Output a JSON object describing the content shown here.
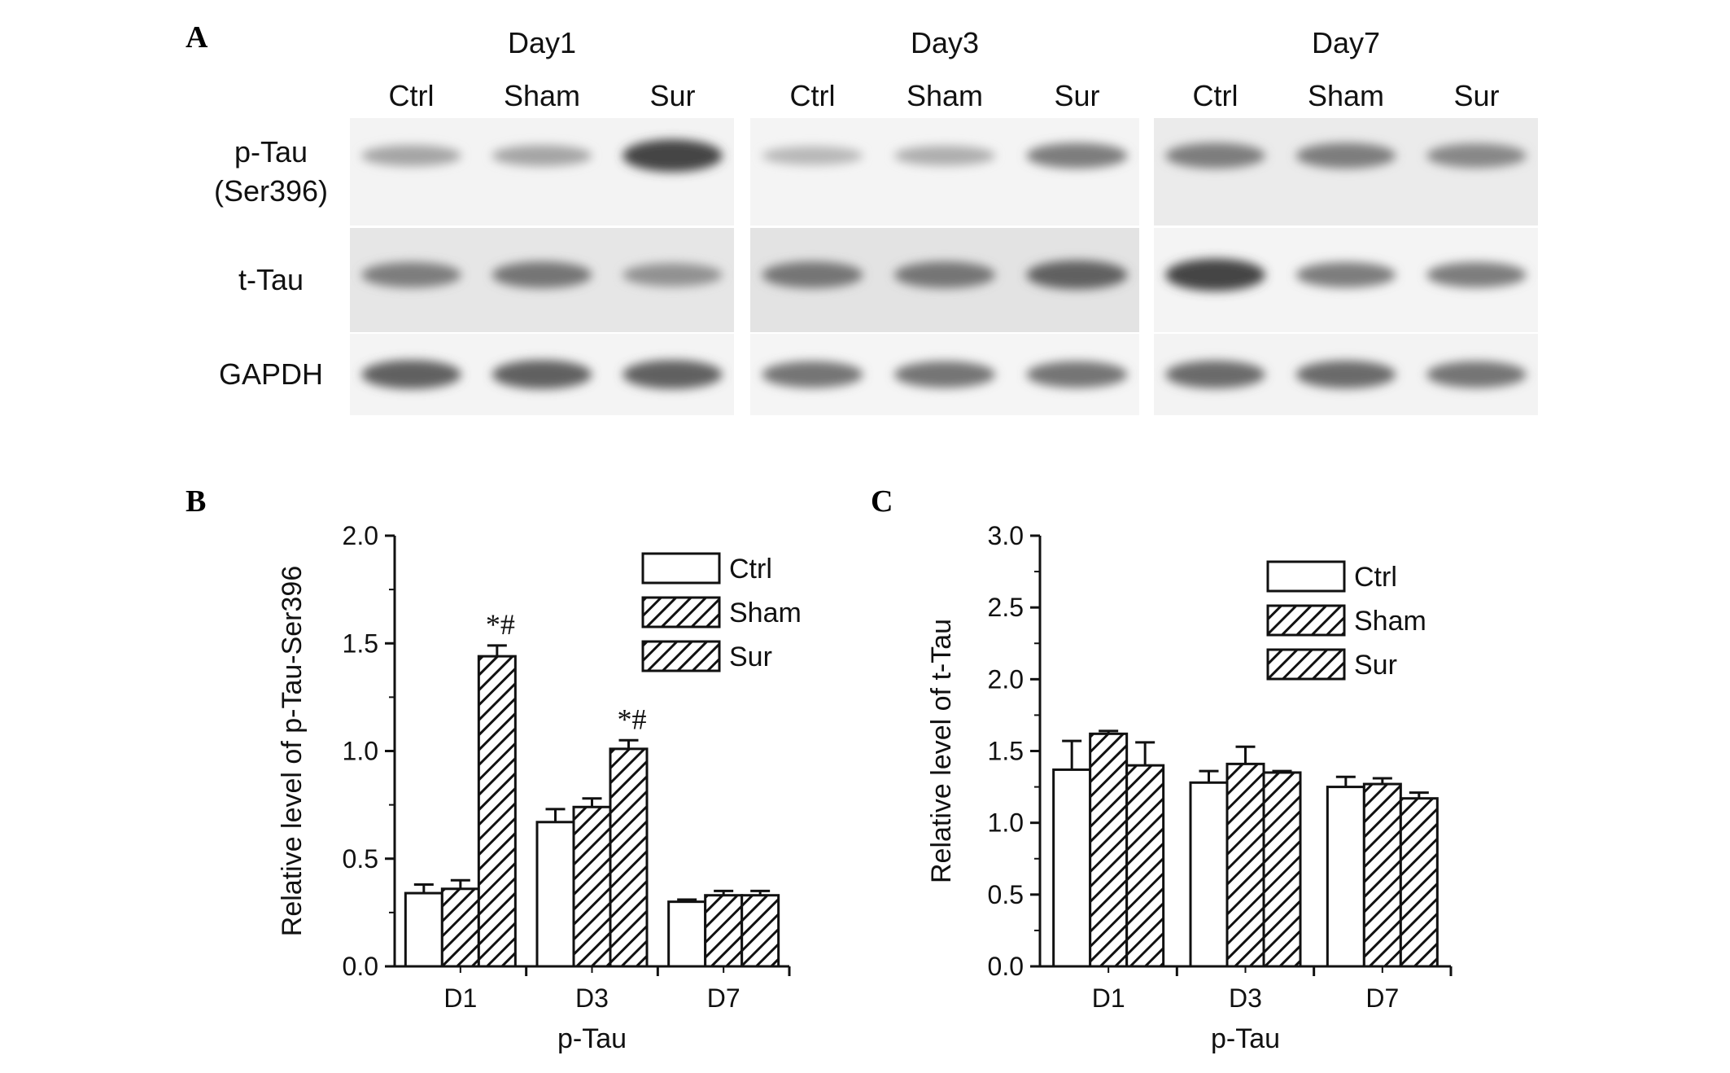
{
  "panel_labels": {
    "a": "A",
    "b": "B",
    "c": "C"
  },
  "blot": {
    "days": [
      "Day1",
      "Day3",
      "Day7"
    ],
    "lanes": [
      "Ctrl",
      "Sham",
      "Sur"
    ],
    "rows": [
      {
        "label_lines": [
          "p-Tau",
          "(Ser396)"
        ]
      },
      {
        "label_lines": [
          "t-Tau"
        ]
      },
      {
        "label_lines": [
          "GAPDH"
        ]
      }
    ],
    "band_intensity": [
      [
        [
          0.35,
          0.35,
          0.85
        ],
        [
          0.25,
          0.3,
          0.55
        ],
        [
          0.55,
          0.55,
          0.5
        ]
      ],
      [
        [
          0.55,
          0.6,
          0.45
        ],
        [
          0.6,
          0.6,
          0.7
        ],
        [
          0.85,
          0.55,
          0.55
        ]
      ],
      [
        [
          0.7,
          0.7,
          0.7
        ],
        [
          0.6,
          0.6,
          0.6
        ],
        [
          0.65,
          0.65,
          0.6
        ]
      ]
    ]
  },
  "chart_data": [
    {
      "type": "bar",
      "panel": "B",
      "categories": [
        "D1",
        "D3",
        "D7"
      ],
      "series": [
        {
          "name": "Ctrl",
          "values": [
            0.34,
            0.67,
            0.3
          ],
          "errors": [
            0.04,
            0.06,
            0.01
          ],
          "pattern": "none"
        },
        {
          "name": "Sham",
          "values": [
            0.36,
            0.74,
            0.33
          ],
          "errors": [
            0.04,
            0.04,
            0.02
          ],
          "pattern": "hatch"
        },
        {
          "name": "Sur",
          "values": [
            1.44,
            1.01,
            0.33
          ],
          "errors": [
            0.05,
            0.04,
            0.02
          ],
          "pattern": "hatch"
        }
      ],
      "annotations": [
        {
          "category": "D1",
          "series": "Sur",
          "text": "*#"
        },
        {
          "category": "D3",
          "series": "Sur",
          "text": "*#"
        }
      ],
      "xlabel": "p-Tau",
      "ylabel": "Relative level of p-Tau-Ser396",
      "ylim": [
        0,
        2.0
      ],
      "yticks": [
        "0.0",
        "0.5",
        "1.0",
        "1.5",
        "2.0"
      ],
      "legend_placement": "top-right",
      "grid": false
    },
    {
      "type": "bar",
      "panel": "C",
      "categories": [
        "D1",
        "D3",
        "D7"
      ],
      "series": [
        {
          "name": "Ctrl",
          "values": [
            1.37,
            1.28,
            1.25
          ],
          "errors": [
            0.2,
            0.08,
            0.07
          ],
          "pattern": "none"
        },
        {
          "name": "Sham",
          "values": [
            1.62,
            1.41,
            1.27
          ],
          "errors": [
            0.02,
            0.12,
            0.04
          ],
          "pattern": "hatch"
        },
        {
          "name": "Sur",
          "values": [
            1.4,
            1.35,
            1.17
          ],
          "errors": [
            0.16,
            0.01,
            0.04
          ],
          "pattern": "hatch"
        }
      ],
      "annotations": [],
      "xlabel": "p-Tau",
      "ylabel": "Relative level of t-Tau",
      "ylim": [
        0,
        3.0
      ],
      "yticks": [
        "0.0",
        "0.5",
        "1.0",
        "1.5",
        "2.0",
        "2.5",
        "3.0"
      ],
      "legend_placement": "top-right",
      "grid": false
    }
  ]
}
